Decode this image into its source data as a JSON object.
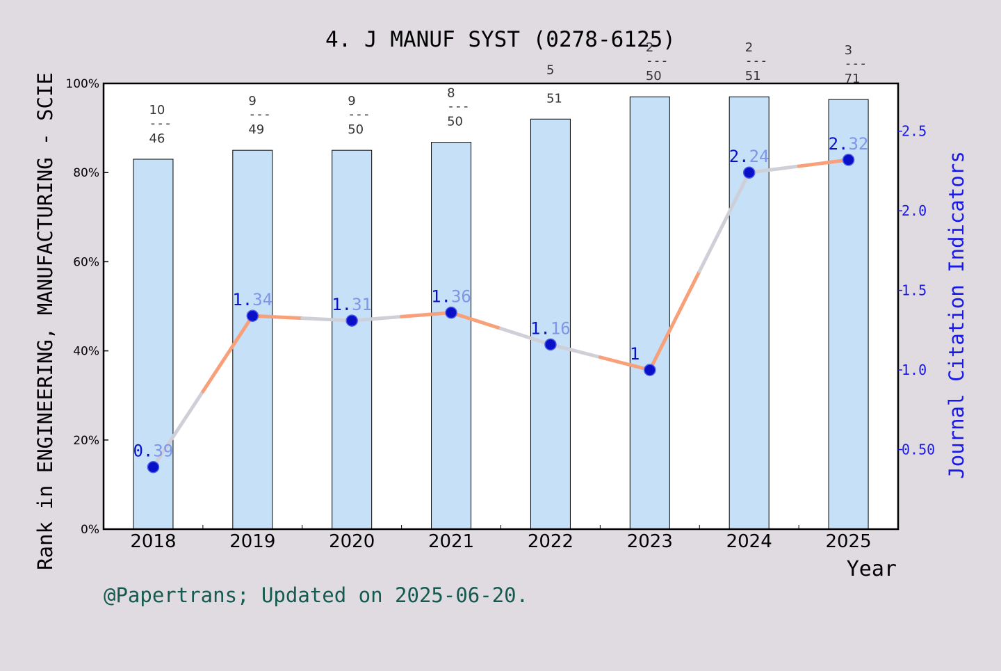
{
  "chart_data": {
    "type": "bar",
    "title": "4. J MANUF SYST (0278-6125)",
    "xlabel": "Year",
    "ylabel_left": "Rank in ENGINEERING, MANUFACTURING - SCIE",
    "ylabel_right": "Journal Citation Indicators",
    "footer": "@Papertrans; Updated on 2025-06-20.",
    "categories": [
      "2018",
      "2019",
      "2020",
      "2021",
      "2022",
      "2023",
      "2024",
      "2025"
    ],
    "left_axis": {
      "ylim": [
        0,
        100
      ],
      "ticks": [
        0,
        20,
        40,
        60,
        80,
        100
      ],
      "tick_labels": [
        "0%",
        "20%",
        "40%",
        "60%",
        "80%",
        "100%"
      ]
    },
    "right_axis": {
      "ylim": [
        0,
        2.8
      ],
      "ticks": [
        0.5,
        1.0,
        1.5,
        2.0,
        2.5
      ],
      "tick_labels": [
        "0.50",
        "1.0",
        "1.5",
        "2.0",
        "2.5"
      ]
    },
    "series": [
      {
        "kind": "bar",
        "axis": "left",
        "values": [
          83,
          85,
          85,
          86.8,
          92,
          97,
          97,
          96.4
        ],
        "rank_labels": [
          {
            "rank": "10",
            "dash": "---",
            "total": "46"
          },
          {
            "rank": "9",
            "dash": "---",
            "total": "49"
          },
          {
            "rank": "9",
            "dash": "---",
            "total": "50"
          },
          {
            "rank": "8",
            "dash": "---",
            "total": "50"
          },
          {
            "rank": "5",
            "dash": "",
            "total": "51"
          },
          {
            "rank": "2",
            "dash": "---",
            "total": "50"
          },
          {
            "rank": "2",
            "dash": "---",
            "total": "51"
          },
          {
            "rank": "3",
            "dash": "---",
            "total": "71"
          }
        ]
      },
      {
        "kind": "line",
        "axis": "right",
        "values": [
          0.39,
          1.34,
          1.31,
          1.36,
          1.16,
          1.0,
          2.24,
          2.32
        ],
        "labels": [
          {
            "lead": "0.",
            "tail": "39"
          },
          {
            "lead": "1.",
            "tail": "34"
          },
          {
            "lead": "1.",
            "tail": "31"
          },
          {
            "lead": "1.",
            "tail": "36"
          },
          {
            "lead": "1.",
            "tail": "16"
          },
          {
            "lead": "1",
            "tail": ""
          },
          {
            "lead": "2.",
            "tail": "24"
          },
          {
            "lead": "2.",
            "tail": "32"
          }
        ]
      }
    ],
    "colors": {
      "background": "#dfdbe0",
      "plot_background": "#ffffff",
      "bar_fill": "#c5e0f7",
      "line": "#f7a07a",
      "line_fade": "#cfcfd8",
      "marker": "#0a10c8",
      "right_axis": "#1a1ae6",
      "label_lead": "#0a10c8",
      "label_tail": "#7f95e8",
      "footer": "#145a50"
    },
    "grid": false,
    "legend": "none"
  }
}
